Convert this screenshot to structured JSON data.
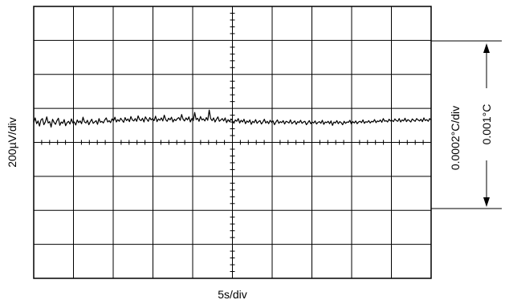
{
  "chart_data": {
    "type": "line",
    "title": "",
    "xlabel": "5s/div",
    "ylabel": "200µV/div",
    "right_scale_label": "0.0002°C/div",
    "span_label": "0.001°C",
    "x_divisions": 10,
    "y_divisions": 8,
    "x_range_div": [
      0,
      10
    ],
    "y_range_div": [
      -4,
      4
    ],
    "trace_mean_div": 0.62,
    "trace_noise_pp_div": 0.3,
    "grid": true,
    "series": [
      {
        "values_div": [
          0.58,
          0.72,
          0.55,
          0.63,
          0.48,
          0.66,
          0.7,
          0.52,
          0.6,
          0.75,
          0.57,
          0.61,
          0.45,
          0.68,
          0.59,
          0.53,
          0.64,
          0.71,
          0.5,
          0.6,
          0.56,
          0.67,
          0.49,
          0.58,
          0.62,
          0.54,
          0.69,
          0.57,
          0.6,
          0.51,
          0.66,
          0.58,
          0.63,
          0.55,
          0.74,
          0.6,
          0.57,
          0.65,
          0.52,
          0.61,
          0.68,
          0.56,
          0.6,
          0.64,
          0.53,
          0.7,
          0.59,
          0.62,
          0.57,
          0.66,
          0.72,
          0.6,
          0.64,
          0.58,
          0.69,
          0.63,
          0.74,
          0.6,
          0.67,
          0.62,
          0.71,
          0.65,
          0.59,
          0.73,
          0.64,
          0.69,
          0.61,
          0.76,
          0.66,
          0.63,
          0.7,
          0.62,
          0.78,
          0.67,
          0.64,
          0.71,
          0.6,
          0.75,
          0.68,
          0.62,
          0.73,
          0.66,
          0.7,
          0.64,
          0.77,
          0.61,
          0.69,
          0.65,
          0.72,
          0.63,
          0.8,
          0.67,
          0.62,
          0.71,
          0.66,
          0.74,
          0.6,
          0.68,
          0.64,
          0.7,
          0.73,
          0.65,
          0.82,
          0.68,
          0.63,
          0.72,
          0.66,
          0.75,
          0.6,
          0.7,
          0.64,
          0.88,
          0.67,
          0.71,
          0.62,
          0.76,
          0.66,
          0.69,
          0.63,
          0.73,
          0.65,
          0.95,
          0.7,
          0.64,
          0.72,
          0.6,
          0.68,
          0.75,
          0.62,
          0.66,
          0.7,
          0.63,
          0.72,
          0.58,
          0.67,
          0.61,
          0.69,
          0.64,
          0.56,
          0.66,
          0.62,
          0.7,
          0.57,
          0.65,
          0.6,
          0.68,
          0.55,
          0.63,
          0.59,
          0.66,
          0.53,
          0.62,
          0.58,
          0.67,
          0.56,
          0.61,
          0.64,
          0.54,
          0.6,
          0.68,
          0.57,
          0.62,
          0.55,
          0.65,
          0.59,
          0.63,
          0.52,
          0.6,
          0.66,
          0.56,
          0.61,
          0.58,
          0.64,
          0.54,
          0.62,
          0.6,
          0.57,
          0.66,
          0.55,
          0.59,
          0.63,
          0.53,
          0.61,
          0.58,
          0.65,
          0.56,
          0.6,
          0.62,
          0.52,
          0.58,
          0.64,
          0.55,
          0.6,
          0.57,
          0.63,
          0.54,
          0.59,
          0.61,
          0.56,
          0.65,
          0.53,
          0.6,
          0.58,
          0.62,
          0.55,
          0.63,
          0.5,
          0.6,
          0.57,
          0.64,
          0.55,
          0.61,
          0.58,
          0.52,
          0.62,
          0.56,
          0.6,
          0.59,
          0.65,
          0.54,
          0.61,
          0.57,
          0.63,
          0.55,
          0.6,
          0.62,
          0.58,
          0.66,
          0.56,
          0.61,
          0.59,
          0.64,
          0.57,
          0.62,
          0.6,
          0.67,
          0.58,
          0.63,
          0.61,
          0.66,
          0.59,
          0.7,
          0.62,
          0.64,
          0.6,
          0.68,
          0.63,
          0.65,
          0.61,
          0.69,
          0.64,
          0.62,
          0.7,
          0.6,
          0.66,
          0.63,
          0.71,
          0.61,
          0.67,
          0.64,
          0.6,
          0.69,
          0.65,
          0.62,
          0.7,
          0.66,
          0.63,
          0.68,
          0.61,
          0.72,
          0.64,
          0.67,
          0.62,
          0.7,
          0.65
        ]
      }
    ]
  },
  "colors": {
    "trace": "#000000",
    "grid": "#000000",
    "background": "#ffffff"
  }
}
